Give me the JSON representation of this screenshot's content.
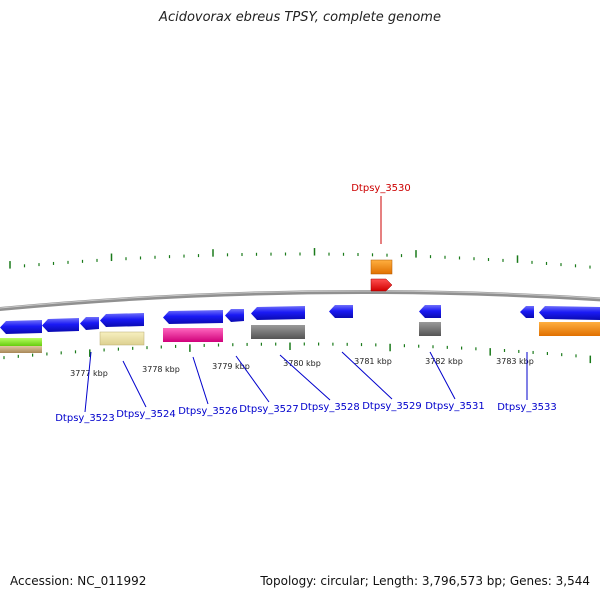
{
  "title": "Acidovorax ebreus TPSY, complete genome",
  "footer": {
    "accession": "Accession: NC_011992",
    "topology": "Topology: circular; Length: 3,796,573 bp; Genes: 3,544"
  },
  "scale_labels": [
    "3777 kbp",
    "3778 kbp",
    "3779 kbp",
    "3780 kbp",
    "3781 kbp",
    "3782 kbp",
    "3783 kbp"
  ],
  "highlight_label": {
    "text": "Dtpsy_3530",
    "color": "#cc0000"
  },
  "gene_labels": [
    "Dtpsy_3523",
    "Dtpsy_3524",
    "Dtpsy_3526",
    "Dtpsy_3527",
    "Dtpsy_3528",
    "Dtpsy_3529",
    "Dtpsy_3531",
    "Dtpsy_3533"
  ],
  "colors": {
    "backbone": "#888888",
    "label_blue": "#0000cc",
    "tick_green": "#1a7a1a",
    "gene_blue": "#1414f0",
    "orange": "#ff8c00",
    "red": "#ff0000",
    "gray": "#6e6e6e",
    "magenta": "#ee1188",
    "pale_yellow": "#eee5a0",
    "lime": "#88ee22",
    "tan": "#c8a878"
  },
  "legend_icons": [
    "forward-gene-arrow",
    "reverse-gene-arrow"
  ]
}
